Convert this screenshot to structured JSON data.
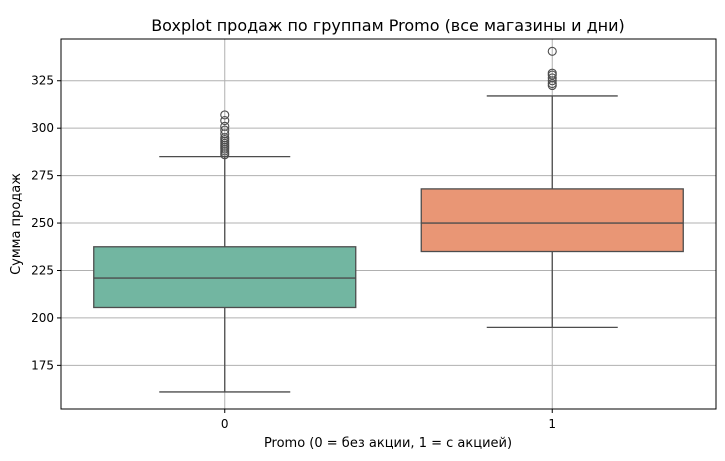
{
  "chart_data": {
    "type": "boxplot",
    "title": "Boxplot продаж по группам Promo (все магазины и дни)",
    "xlabel": "Promo (0 = без акции, 1 = с акцией)",
    "ylabel": "Сумма продаж",
    "categories": [
      "0",
      "1"
    ],
    "ylim": [
      152,
      347
    ],
    "yticks": [
      175,
      200,
      225,
      250,
      275,
      300,
      325
    ],
    "grid": true,
    "boxes": [
      {
        "category": "0",
        "color": "#72b6a1",
        "whisker_low": 161,
        "q1": 205.5,
        "median": 221,
        "q3": 237.5,
        "whisker_high": 285,
        "outliers": [
          286,
          287,
          288,
          289,
          290,
          291,
          292,
          293,
          294,
          295,
          297,
          299,
          301,
          304,
          307
        ]
      },
      {
        "category": "1",
        "color": "#e99675",
        "whisker_low": 195,
        "q1": 235,
        "median": 250,
        "q3": 268,
        "whisker_high": 317,
        "outliers": [
          322.5,
          323.5,
          325,
          326.5,
          328,
          329,
          340.5
        ]
      }
    ]
  }
}
